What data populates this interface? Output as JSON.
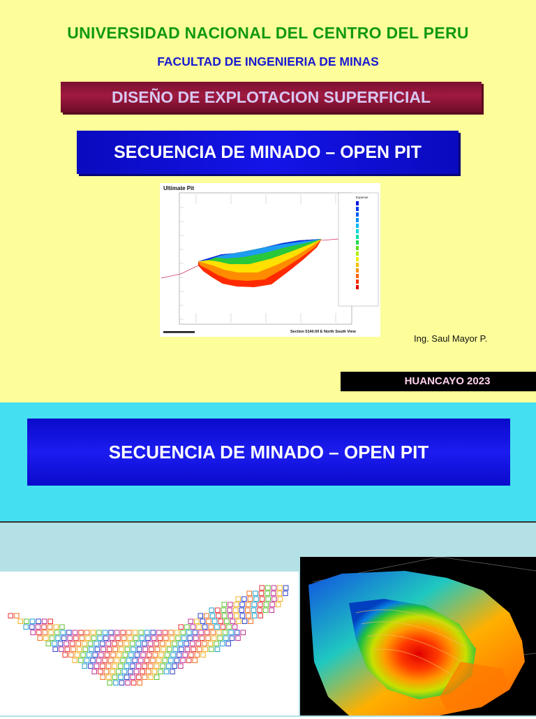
{
  "slide1": {
    "university": "UNIVERSIDAD NACIONAL DEL CENTRO DEL PERU",
    "faculty": "FACULTAD DE INGENIERIA DE MINAS",
    "course": "DISEÑO DE EXPLOTACION SUPERFICIAL",
    "topic": "SECUENCIA DE MINADO – OPEN PIT",
    "author": "Ing. Saul Mayor P.",
    "place_year": "HUANCAYO 2023",
    "figure": {
      "title": "Ultimate Pit",
      "caption": "Section 5140.00 E North South View",
      "legend_title": "Expense"
    }
  },
  "slide2": {
    "topic": "SECUENCIA DE MINADO – OPEN PIT"
  },
  "colors": {
    "slide1_bg": "#fdfd9a",
    "slide2_bg": "#44dff0",
    "title_green": "#119911",
    "faculty_blue": "#1a1ad0",
    "band_red": "#8c1436",
    "band_blue": "#1414e8"
  }
}
